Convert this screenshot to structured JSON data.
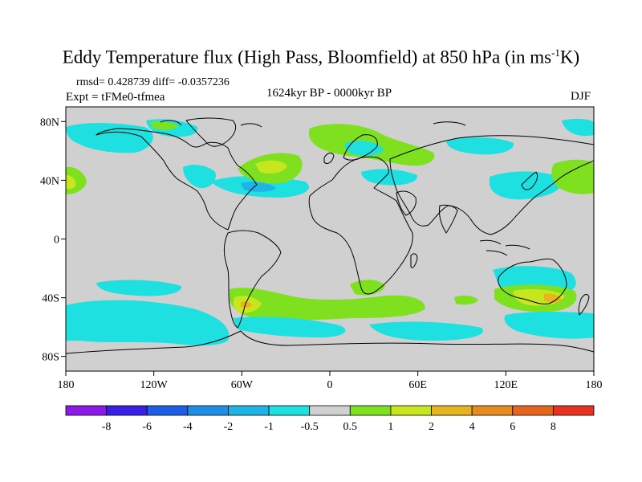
{
  "title": {
    "main": "Eddy Temperature flux (High Pass, Bloomfield) at 850 hPa (in ms",
    "sup": "-1",
    "end": "K)"
  },
  "stats": "rmsd= 0.428739 diff= -0.0357236",
  "experiment": "Expt = tFMe0-tfmea",
  "period": "1624kyr BP - 0000kyr BP",
  "season": "DJF",
  "map": {
    "lat_ticks": [
      {
        "lat": 80,
        "label": "80N"
      },
      {
        "lat": 40,
        "label": "40N"
      },
      {
        "lat": 0,
        "label": "0"
      },
      {
        "lat": -40,
        "label": "40S"
      },
      {
        "lat": -80,
        "label": "80S"
      }
    ],
    "lon_ticks": [
      {
        "lon": -180,
        "label": "180"
      },
      {
        "lon": -120,
        "label": "120W"
      },
      {
        "lon": -60,
        "label": "60W"
      },
      {
        "lon": 0,
        "label": "0"
      },
      {
        "lon": 60,
        "label": "60E"
      },
      {
        "lon": 120,
        "label": "120E"
      },
      {
        "lon": 180,
        "label": "180"
      }
    ],
    "land_color": "#d0d0d0",
    "coast_color": "#000000"
  },
  "colorbar": {
    "labels": [
      "-8",
      "-6",
      "-4",
      "-2",
      "-1",
      "-0.5",
      "0.5",
      "1",
      "2",
      "4",
      "6",
      "8"
    ],
    "colors": [
      "#8b1ae8",
      "#3a1ee6",
      "#1e5ee6",
      "#1e8ee6",
      "#1eb4e6",
      "#1ee0e0",
      "#d0d0d0",
      "#7ee01e",
      "#c8e61e",
      "#e6b41e",
      "#e68c1e",
      "#e6641e",
      "#e6321e"
    ]
  }
}
